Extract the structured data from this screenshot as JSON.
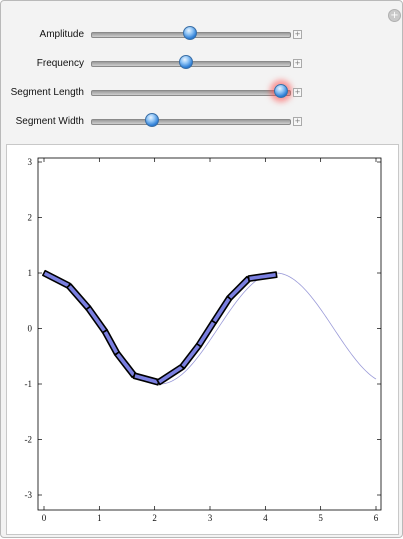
{
  "controls": [
    {
      "label": "Amplitude",
      "value": 0.5
    },
    {
      "label": "Frequency",
      "value": 0.48
    },
    {
      "label": "Segment Length",
      "value": 0.96
    },
    {
      "label": "Segment Width",
      "value": 0.31
    }
  ],
  "icons": {
    "close": "close-circle-icon",
    "expand": "plus-expand-icon"
  },
  "colors": {
    "segment_fill": "#7a7fe0",
    "segment_stroke": "#000000",
    "curve": "#9a9ad8",
    "thumb": "#2f7fd6",
    "thumb_glow": "#ff4646"
  },
  "chart_data": {
    "type": "line",
    "xlim": [
      0,
      6
    ],
    "ylim": [
      -3,
      3
    ],
    "x_ticks": [
      0,
      1,
      2,
      3,
      4,
      5,
      6
    ],
    "y_ticks": [
      -3,
      -2,
      -1,
      0,
      1,
      2,
      3
    ],
    "grid": false,
    "series": [
      {
        "role": "curve",
        "function": "cos(1.5x)",
        "x_range": [
          0,
          6
        ]
      },
      {
        "role": "segments",
        "points": [
          [
            0,
            1.0
          ],
          [
            0.45,
            0.77
          ],
          [
            0.8,
            0.37
          ],
          [
            1.1,
            -0.05
          ],
          [
            1.32,
            -0.45
          ],
          [
            1.63,
            -0.85
          ],
          [
            2.07,
            -0.97
          ],
          [
            2.5,
            -0.69
          ],
          [
            2.8,
            -0.3
          ],
          [
            3.07,
            0.12
          ],
          [
            3.35,
            0.55
          ],
          [
            3.7,
            0.9
          ],
          [
            4.2,
            0.97
          ]
        ]
      }
    ]
  }
}
